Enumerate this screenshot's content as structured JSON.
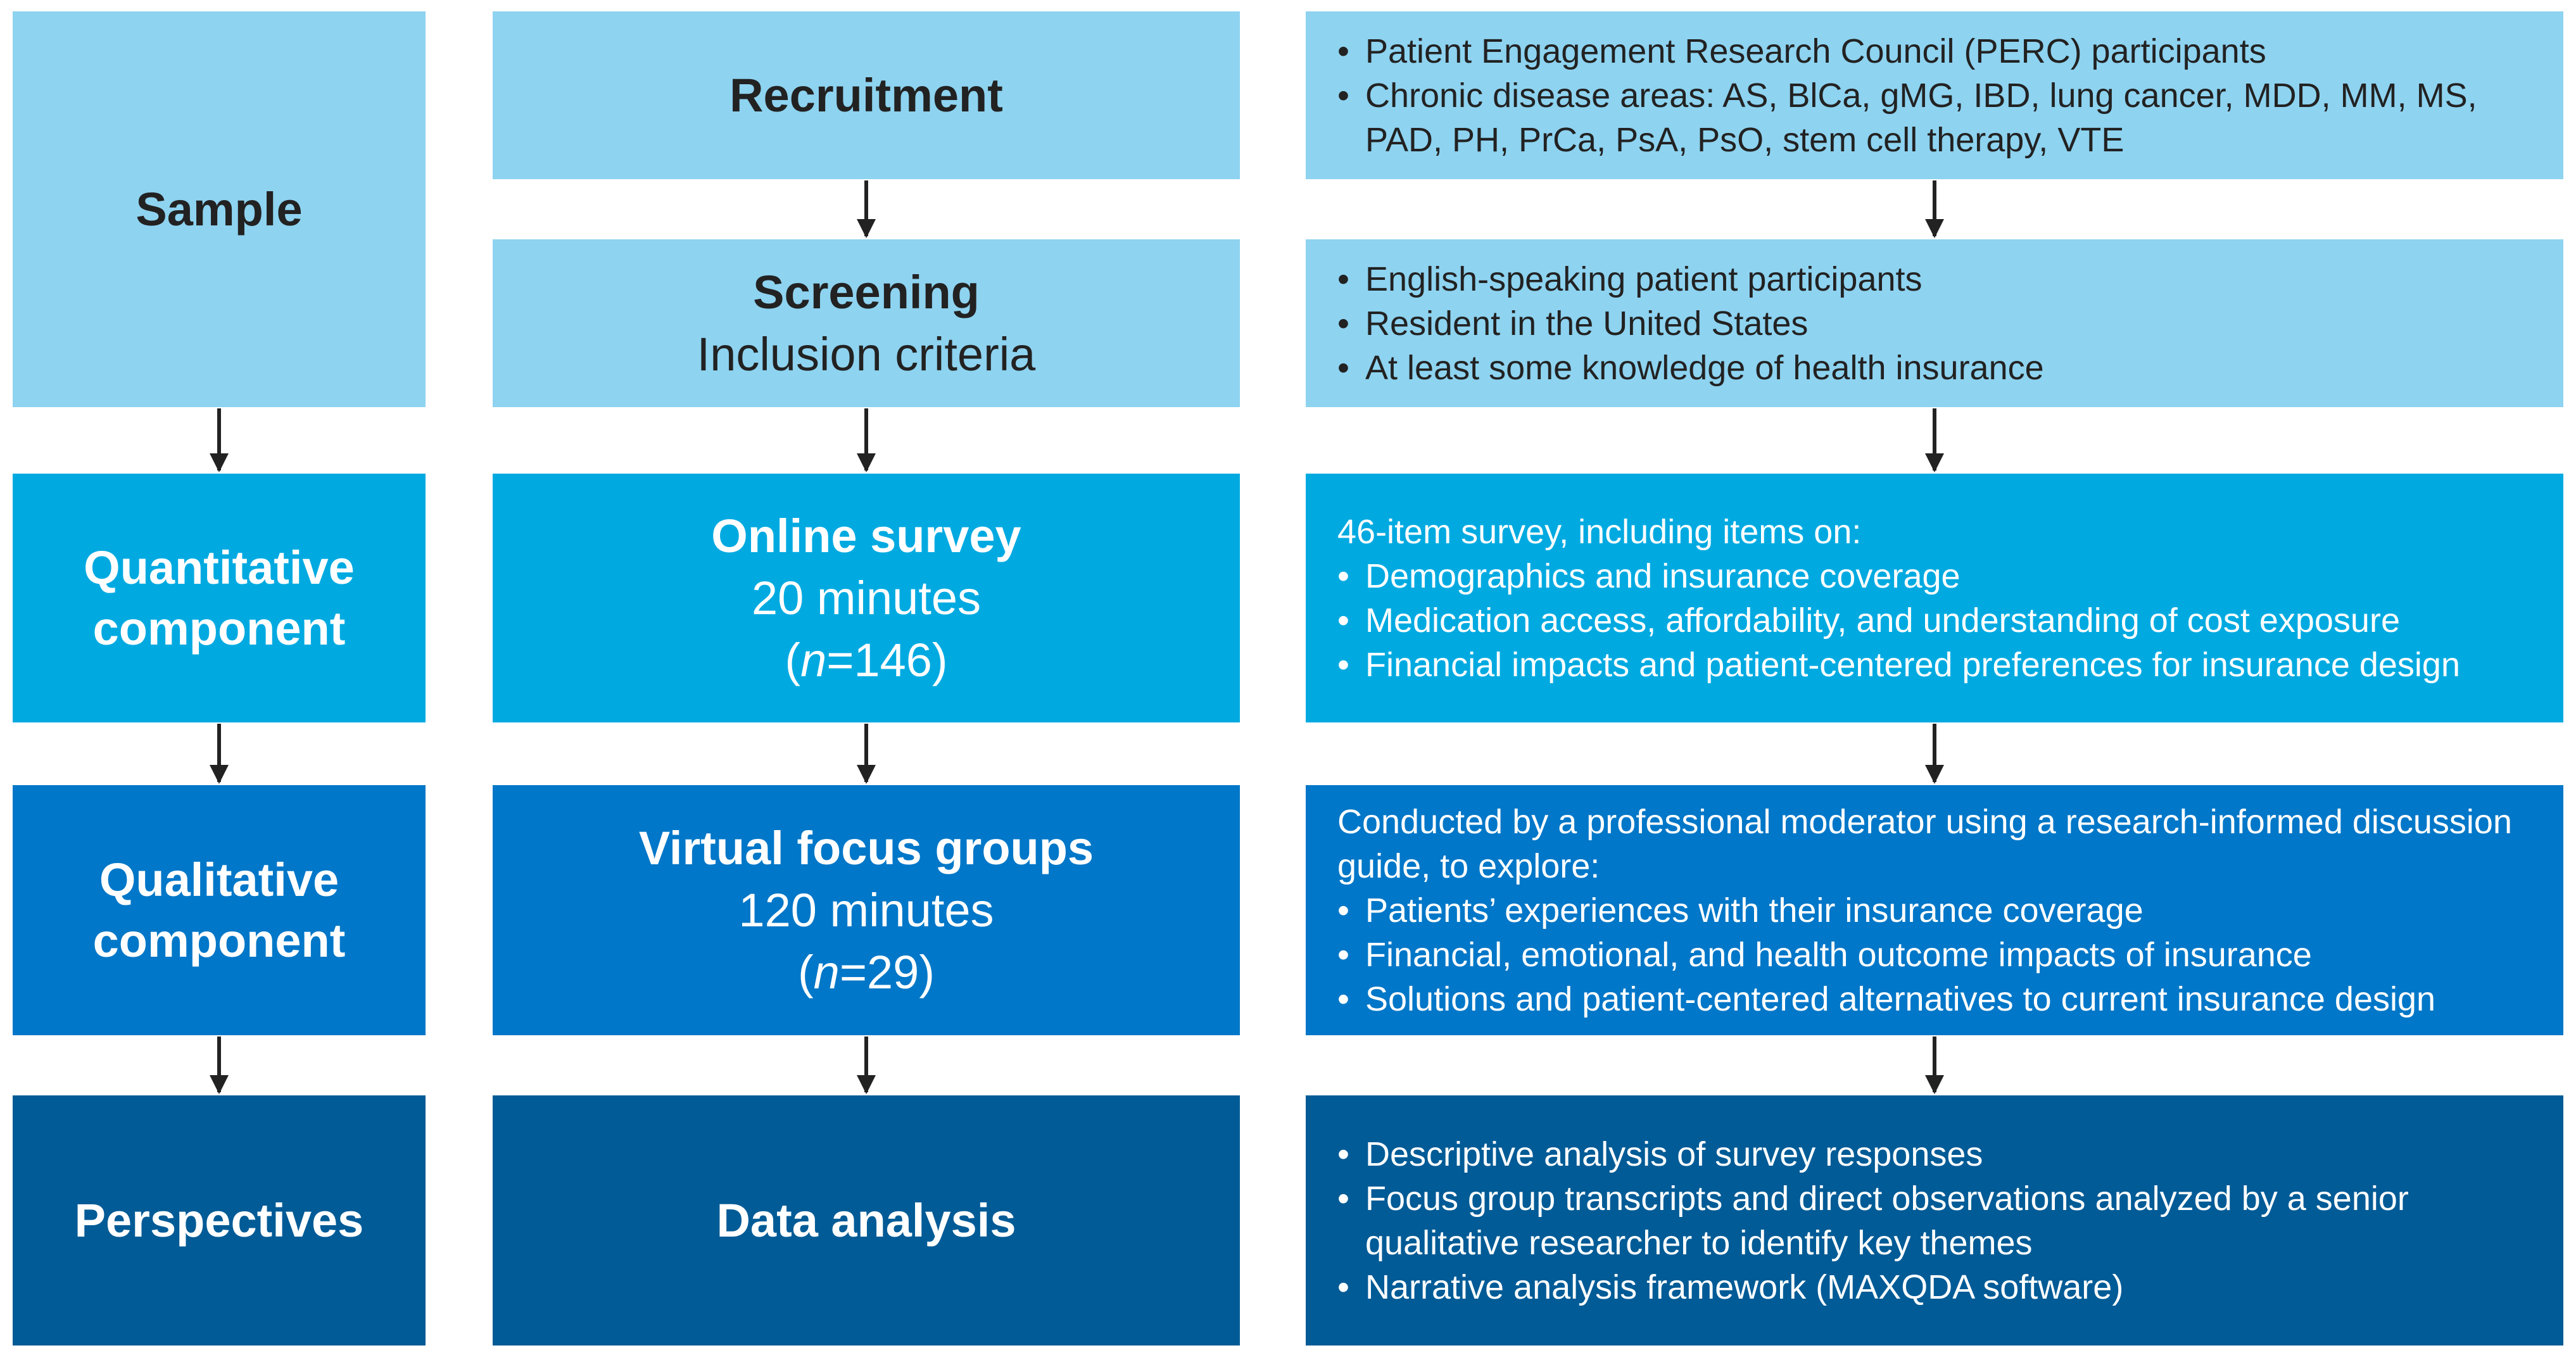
{
  "colors": {
    "tier1": "#8ED3F0",
    "tier2": "#00AAE1",
    "tier3": "#0077C8",
    "tier4": "#005B96",
    "dark_text": "#222222",
    "light_text": "#ffffff",
    "arrow": "#222222"
  },
  "left": {
    "sample": "Sample",
    "quantitative": "Quantitative component",
    "qualitative": "Qualitative component",
    "perspectives": "Perspectives"
  },
  "middle": {
    "recruitment": {
      "title": "Recruitment"
    },
    "screening": {
      "title": "Screening",
      "subtitle": "Inclusion criteria"
    },
    "online_survey": {
      "title": "Online survey",
      "duration": "20 minutes",
      "n_open": "(",
      "n_label": "n",
      "n_value": "=146)"
    },
    "focus_groups": {
      "title": "Virtual focus groups",
      "duration": "120 minutes",
      "n_open": "(",
      "n_label": "n",
      "n_value": "=29)"
    },
    "data_analysis": {
      "title": "Data analysis"
    }
  },
  "right": {
    "recruitment": {
      "bullets": [
        "Patient Engagement Research Council (PERC) participants",
        "Chronic disease areas: AS, BlCa, gMG, IBD, lung cancer, MDD, MM, MS, PAD, PH, PrCa, PsA, PsO, stem cell therapy, VTE"
      ]
    },
    "screening": {
      "bullets": [
        "English-speaking patient participants",
        "Resident in the United States",
        "At least some knowledge of health insurance"
      ]
    },
    "survey": {
      "lead": "46-item survey, including items on:",
      "bullets": [
        "Demographics and insurance coverage",
        "Medication access, affordability, and understanding of cost exposure",
        "Financial impacts and patient-centered preferences for insurance design"
      ]
    },
    "focus_groups": {
      "lead": "Conducted by a professional moderator using a research-informed discussion guide, to explore:",
      "bullets": [
        "Patients’ experiences with their insurance coverage",
        "Financial, emotional, and health outcome impacts of insurance",
        "Solutions and patient-centered alternatives to current insurance design"
      ]
    },
    "analysis": {
      "bullets": [
        "Descriptive analysis of survey responses",
        "Focus group transcripts and direct observations analyzed by a senior qualitative researcher to identify key themes",
        "Narrative analysis framework (MAXQDA software)"
      ]
    }
  }
}
